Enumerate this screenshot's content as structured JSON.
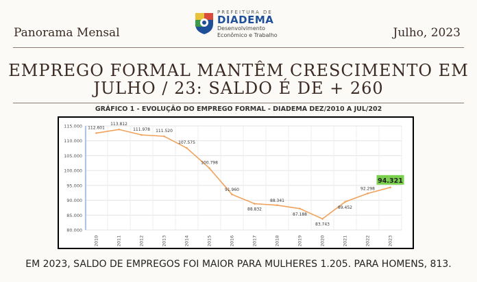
{
  "header": {
    "left_title": "Panorama Mensal",
    "right_date": "Julho, 2023",
    "logo": {
      "prefix": "PREFEITURA DE",
      "name": "DIADEMA",
      "line1": "Desenvolvimento",
      "line2": "Econômico e Trabalho"
    }
  },
  "headline": {
    "line1": "EMPREGO FORMAL MANTÊM CRESCIMENTO EM",
    "line2": "JULHO / 23: SALDO É DE + 260"
  },
  "chart_data": {
    "type": "line",
    "title": "GRÁFICO 1 - EVOLUÇÃO DO EMPREGO FORMAL - DIADEMA DEZ/2010 A JUL/202",
    "xlabel": "",
    "ylabel": "",
    "x": [
      "2010",
      "2011",
      "2012",
      "2013",
      "2014",
      "2015",
      "2016",
      "2017",
      "2018",
      "2019",
      "2020",
      "2021",
      "2022",
      "2023"
    ],
    "values": [
      112601,
      113812,
      111978,
      111520,
      107575,
      100798,
      91960,
      88832,
      88341,
      87188,
      83743,
      89452,
      92298,
      94321
    ],
    "labels": [
      "112.601",
      "113.812",
      "111.978",
      "111.520",
      "107.575",
      "100.798",
      "91.960",
      "88.832",
      "88.341",
      "87.188",
      "83.743",
      "89.452",
      "92.298",
      "94.321"
    ],
    "ylim": [
      80000,
      115000
    ],
    "yticks": [
      "80.000",
      "85.000",
      "90.000",
      "95.000",
      "100.000",
      "105.000",
      "110.000",
      "115.000"
    ],
    "line_color": "#f0a25a",
    "highlight_color": "#7bd14e",
    "grid": true
  },
  "footer": {
    "text": "EM 2023, SALDO DE EMPREGOS FOI MAIOR PARA MULHERES 1.205. PARA HOMENS, 813."
  }
}
